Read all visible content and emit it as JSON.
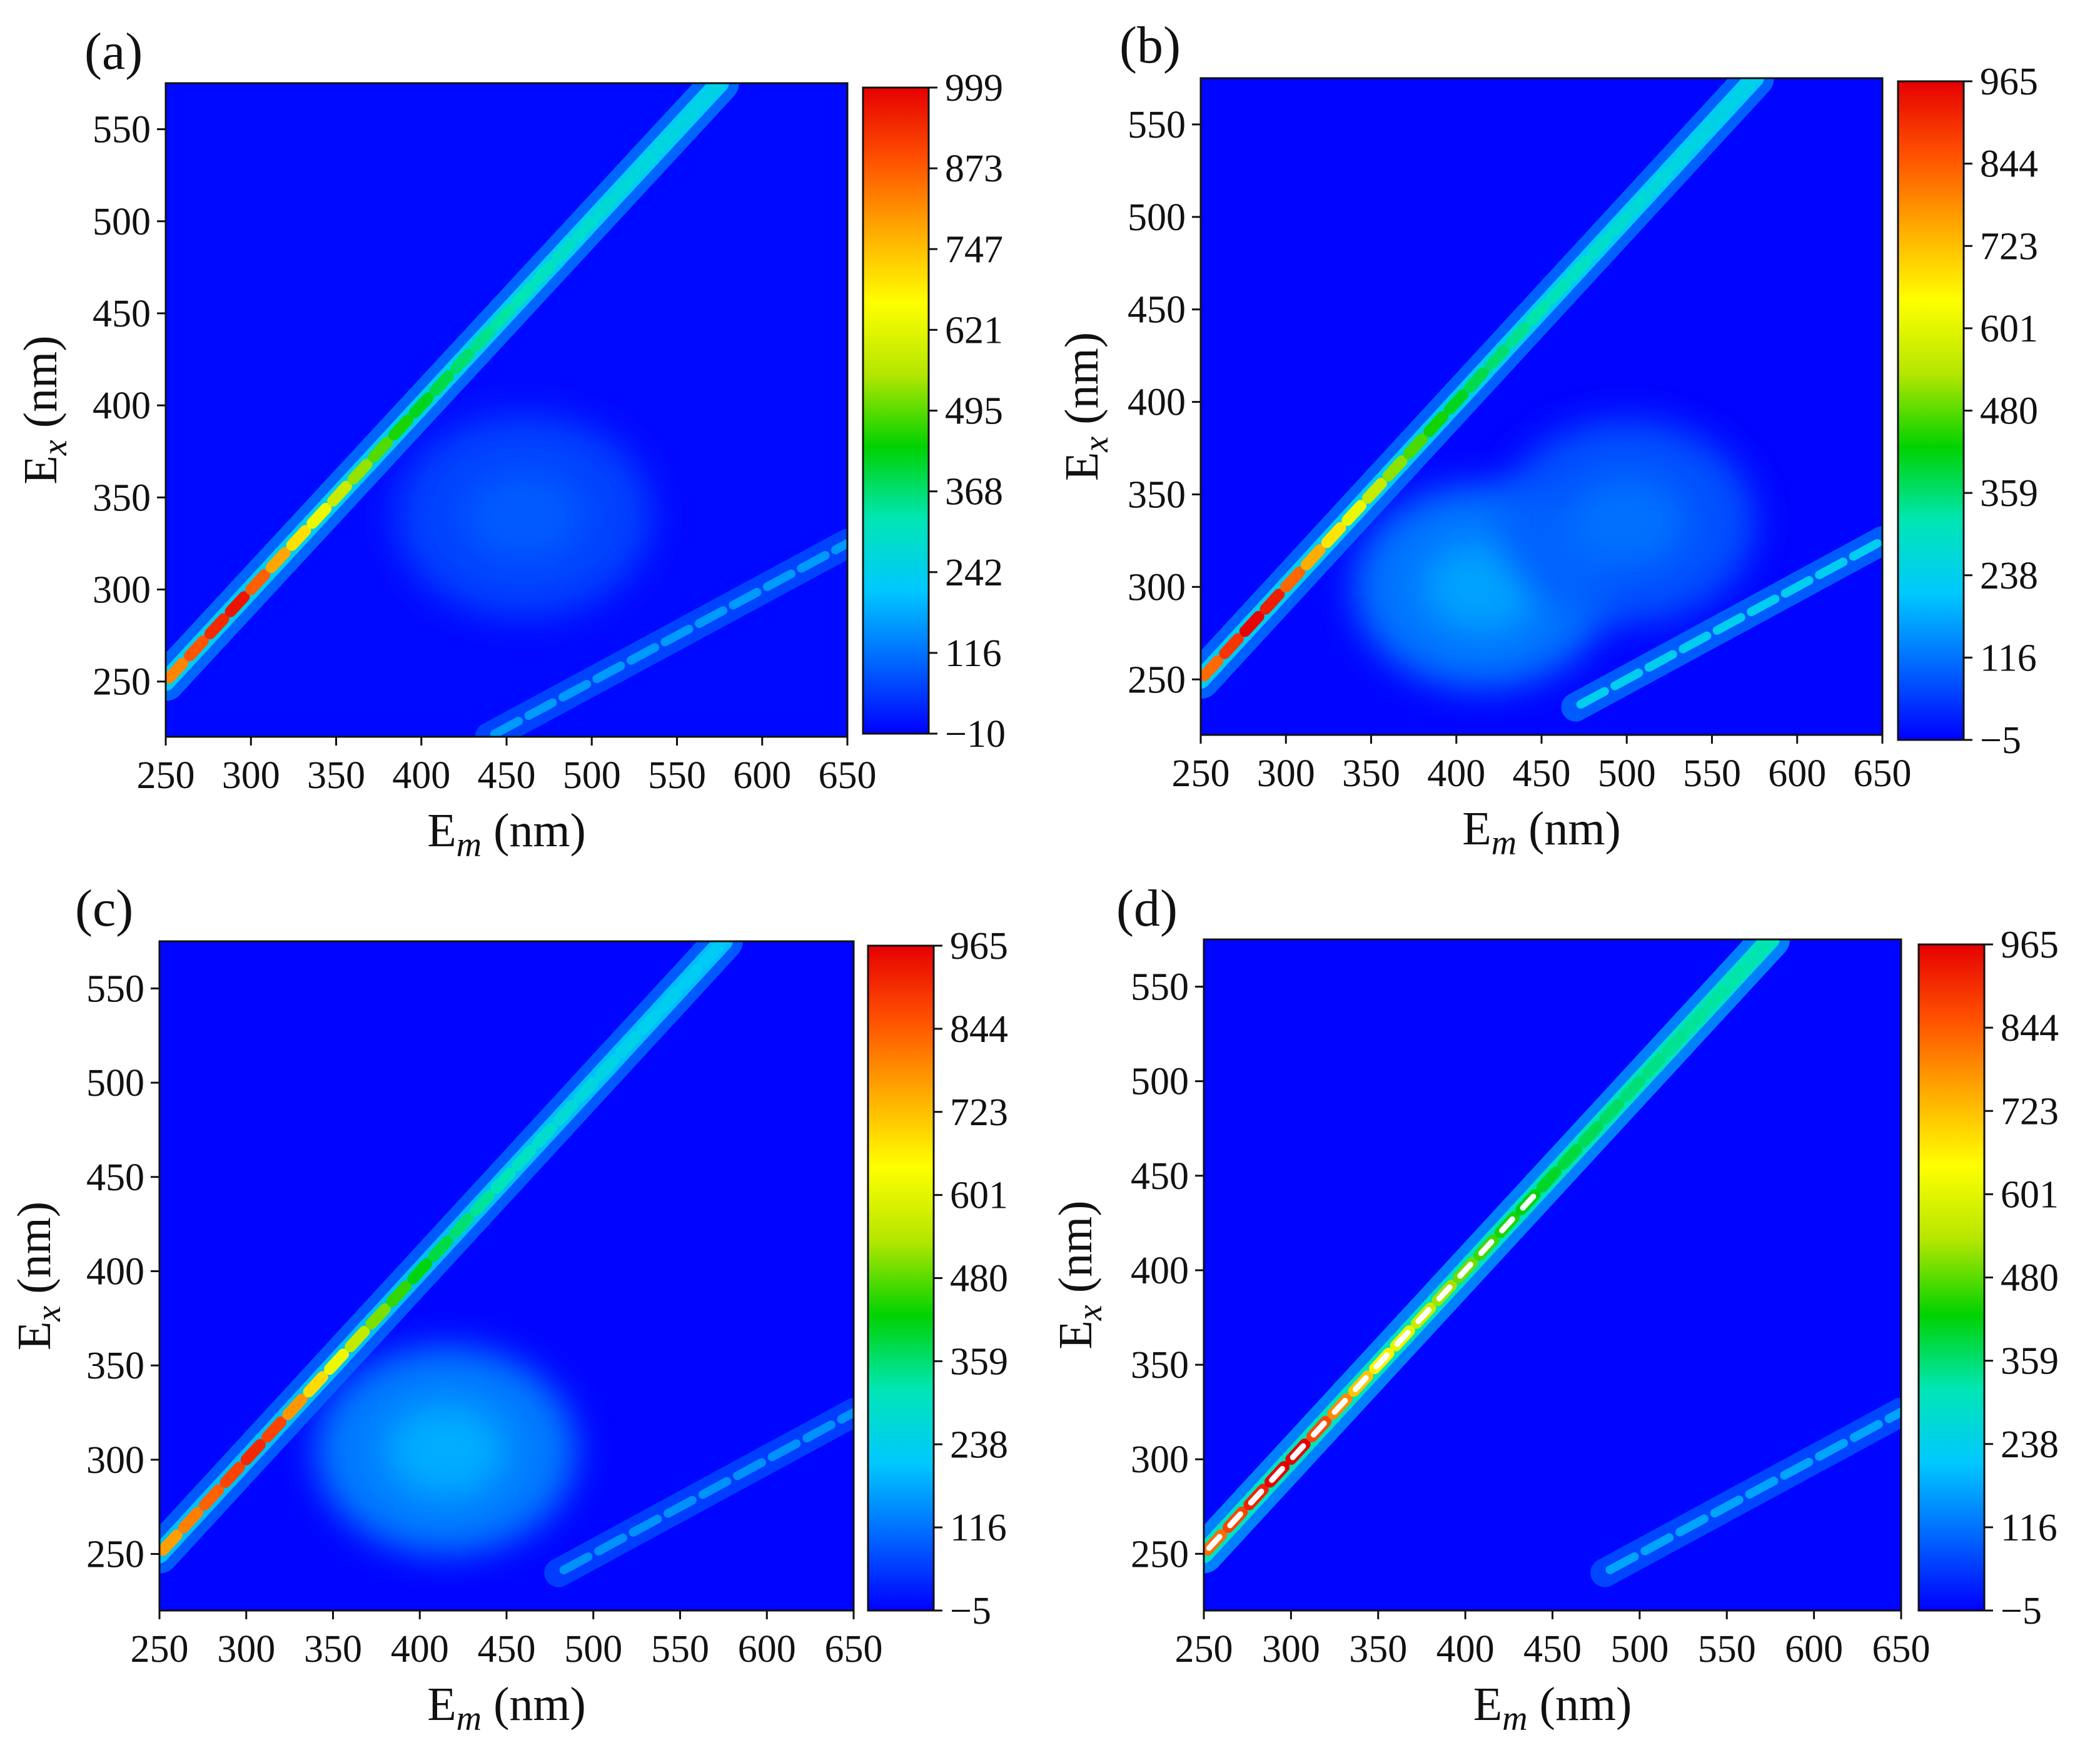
{
  "figure": {
    "description_text": "",
    "colormap": [
      "#0000ff",
      "#0066ff",
      "#00c8ff",
      "#00e6b4",
      "#00d200",
      "#b4e600",
      "#ffff00",
      "#ffaa00",
      "#ff5000",
      "#e60000"
    ]
  },
  "chart_data": [
    {
      "type": "heatmap",
      "panel_label": "(a)",
      "xlabel_main": "E",
      "xlabel_sub": "m",
      "xlabel_unit": " (nm)",
      "ylabel_main": "E",
      "ylabel_sub": "x",
      "ylabel_unit": " (nm)",
      "xlim": [
        250,
        650
      ],
      "ylim": [
        220,
        575
      ],
      "xticks": [
        250,
        300,
        350,
        400,
        450,
        500,
        550,
        600,
        650
      ],
      "yticks": [
        250,
        300,
        350,
        400,
        450,
        500,
        550
      ],
      "colorbar_range": [
        -10,
        999
      ],
      "colorbar_ticks": [
        "999",
        "873",
        "747",
        "621",
        "495",
        "368",
        "242",
        "116",
        "−10"
      ],
      "features": [
        {
          "kind": "rayleigh_scatter",
          "x_start": 250,
          "x_end": 575,
          "peak_value": 990,
          "peak_at_x": 290,
          "min_value": 230
        },
        {
          "kind": "second_order_scatter",
          "x_start": 440,
          "x_end": 650,
          "value": 160
        },
        {
          "kind": "fluorescence_blob",
          "em": 460,
          "ex": 340,
          "value": 75
        }
      ]
    },
    {
      "type": "heatmap",
      "panel_label": "(b)",
      "xlabel_main": "E",
      "xlabel_sub": "m",
      "xlabel_unit": " (nm)",
      "ylabel_main": "E",
      "ylabel_sub": "x",
      "ylabel_unit": " (nm)",
      "xlim": [
        250,
        650
      ],
      "ylim": [
        220,
        575
      ],
      "xticks": [
        250,
        300,
        350,
        400,
        450,
        500,
        550,
        600,
        650
      ],
      "yticks": [
        250,
        300,
        350,
        400,
        450,
        500,
        550
      ],
      "colorbar_range": [
        -5,
        965
      ],
      "colorbar_ticks": [
        "965",
        "844",
        "723",
        "601",
        "480",
        "359",
        "238",
        "116",
        "−5"
      ],
      "features": [
        {
          "kind": "rayleigh_scatter",
          "x_start": 250,
          "x_end": 575,
          "peak_value": 990,
          "peak_at_x": 285,
          "min_value": 220
        },
        {
          "kind": "second_order_scatter",
          "x_start": 470,
          "x_end": 650,
          "value": 230
        },
        {
          "kind": "fluorescence_blob",
          "em": 415,
          "ex": 300,
          "value": 140
        },
        {
          "kind": "fluorescence_blob",
          "em": 500,
          "ex": 335,
          "value": 95
        }
      ]
    },
    {
      "type": "heatmap",
      "panel_label": "(c)",
      "xlabel_main": "E",
      "xlabel_sub": "m",
      "xlabel_unit": " (nm)",
      "ylabel_main": "E",
      "ylabel_sub": "x",
      "ylabel_unit": " (nm)",
      "xlim": [
        250,
        650
      ],
      "ylim": [
        220,
        575
      ],
      "xticks": [
        250,
        300,
        350,
        400,
        450,
        500,
        550,
        600,
        650
      ],
      "yticks": [
        250,
        300,
        350,
        400,
        450,
        500,
        550
      ],
      "colorbar_range": [
        -5,
        965
      ],
      "colorbar_ticks": [
        "965",
        "844",
        "723",
        "601",
        "480",
        "359",
        "238",
        "116",
        "−5"
      ],
      "features": [
        {
          "kind": "rayleigh_scatter",
          "x_start": 250,
          "x_end": 575,
          "peak_value": 930,
          "peak_at_x": 310,
          "min_value": 200
        },
        {
          "kind": "second_order_scatter",
          "x_start": 480,
          "x_end": 650,
          "value": 150
        },
        {
          "kind": "fluorescence_blob",
          "em": 415,
          "ex": 305,
          "value": 150
        }
      ]
    },
    {
      "type": "heatmap",
      "panel_label": "(d)",
      "xlabel_main": "E",
      "xlabel_sub": "m",
      "xlabel_unit": " (nm)",
      "ylabel_main": "E",
      "ylabel_sub": "x",
      "ylabel_unit": " (nm)",
      "xlim": [
        250,
        650
      ],
      "ylim": [
        220,
        575
      ],
      "xticks": [
        250,
        300,
        350,
        400,
        450,
        500,
        550,
        600,
        650
      ],
      "yticks": [
        250,
        300,
        350,
        400,
        450,
        500,
        550
      ],
      "colorbar_range": [
        -5,
        965
      ],
      "colorbar_ticks": [
        "965",
        "844",
        "723",
        "601",
        "480",
        "359",
        "238",
        "116",
        "−5"
      ],
      "features": [
        {
          "kind": "rayleigh_scatter",
          "x_start": 250,
          "x_end": 575,
          "peak_value": 1000,
          "peak_at_x": 300,
          "min_value": 300,
          "saturated_below_x": 440
        },
        {
          "kind": "second_order_scatter",
          "x_start": 480,
          "x_end": 650,
          "value": 170
        }
      ]
    }
  ]
}
